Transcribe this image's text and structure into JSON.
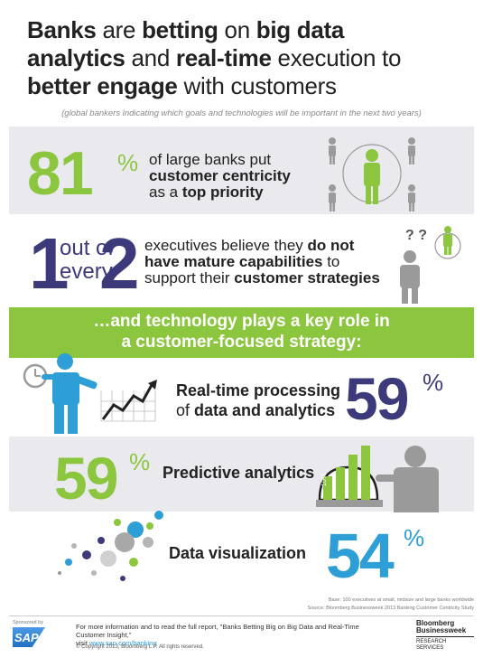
{
  "title": {
    "w1": "Banks",
    "w2": " are ",
    "w3": "betting",
    "w4": " on ",
    "w5": "big data",
    "w6": "analytics",
    "w7": " and ",
    "w8": "real-time",
    "w9": " execution to",
    "w10": "better engage",
    "w11": " with customers"
  },
  "subtitle": "(global bankers indicating which goals and technologies will be important in the next two years)",
  "stat1": {
    "value": "81",
    "percent": "%",
    "line1": "of large banks put",
    "line2": "customer centricity",
    "line3a": "as a ",
    "line3b": "top priority"
  },
  "stat2": {
    "num1": "1",
    "out_of": "out of",
    "every": "every",
    "num2": "2",
    "line1": "executives believe they ",
    "line1b": "do not",
    "line2a": "have mature capabilities",
    "line2b": " to",
    "line3a": "support their ",
    "line3b": "customer strategies",
    "question_marks": "? ?"
  },
  "banner": {
    "line1": "…and technology plays a key role in",
    "line2": "a customer-focused strategy:"
  },
  "tech1": {
    "line1": "Real-time processing",
    "line2a": "of ",
    "line2b": "data and analytics",
    "value": "59",
    "percent": "%"
  },
  "tech2": {
    "label": "Predictive analytics",
    "value": "59",
    "percent": "%",
    "chart_label": "10%"
  },
  "tech3": {
    "label": "Data visualization",
    "value": "54",
    "percent": "%"
  },
  "footer": {
    "base_note": "Base: 100 executives at small, midsize and large banks worldwide",
    "source_note": "Source: Bloomberg Businessweek 2013 Banking Customer Centricity Study",
    "sponsored_by": "Sponsored by",
    "sap_logo": "SAP",
    "more_info": "For more information and to read the full report, \"Banks Betting Big on Big Data and Real-Time Customer Insight,\"",
    "visit_prefix": "visit ",
    "visit_url": "www.sap.com/banking",
    "copyright": "© Copyright 2013, Bloomberg L.P. All rights reserved.",
    "bb_line1": "Bloomberg",
    "bb_line2": "Businessweek",
    "bb_line3": "RESEARCH",
    "bb_line4": "SERVICES"
  },
  "colors": {
    "green": "#8cc63f",
    "navy": "#3d3a7b",
    "blue": "#2e9fd6",
    "band": "#e9e9ee",
    "gray_figure": "#9a9a9a"
  }
}
